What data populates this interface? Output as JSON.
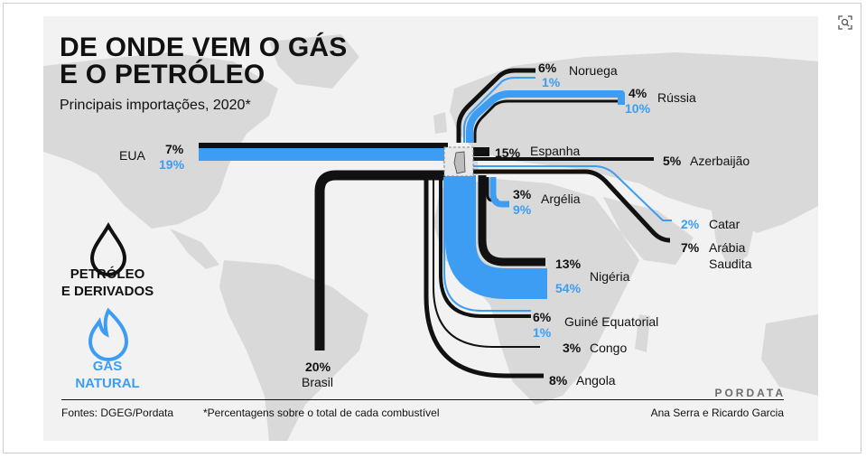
{
  "title_line1": "DE ONDE VEM O GÁS",
  "title_line2": "E O PETRÓLEO",
  "subtitle": "Principais importações, 2020*",
  "legend": {
    "oil": {
      "line1": "PETRÓLEO",
      "line2": "E DERIVADOS",
      "icon": "oil-drop-icon",
      "color": "#111111"
    },
    "gas": {
      "line1": "GÁS",
      "line2": "NATURAL",
      "icon": "flame-icon",
      "color": "#3d9df2"
    }
  },
  "colors": {
    "oil": "#111111",
    "gas": "#3d9df2",
    "map_land": "#d9d9d9",
    "background": "#f2f2f2"
  },
  "flows": [
    {
      "country": "EUA",
      "oil": "7%",
      "gas": "19%"
    },
    {
      "country": "Noruega",
      "oil": "6%",
      "gas": "1%"
    },
    {
      "country": "Rússia",
      "oil": "4%",
      "gas": "10%"
    },
    {
      "country": "Espanha",
      "oil": "15%",
      "gas": ""
    },
    {
      "country": "Azerbaijão",
      "oil": "5%",
      "gas": ""
    },
    {
      "country": "Argélia",
      "oil": "3%",
      "gas": "9%"
    },
    {
      "country": "Catar",
      "oil": "",
      "gas": "2%"
    },
    {
      "country": "Arábia Saudita",
      "oil": "7%",
      "gas": ""
    },
    {
      "country": "Nigéria",
      "oil": "13%",
      "gas": "54%"
    },
    {
      "country": "Guiné Equatorial",
      "oil": "6%",
      "gas": "1%"
    },
    {
      "country": "Congo",
      "oil": "3%",
      "gas": ""
    },
    {
      "country": "Angola",
      "oil": "8%",
      "gas": ""
    },
    {
      "country": "Brasil",
      "oil": "20%",
      "gas": ""
    }
  ],
  "labels": {
    "eua": {
      "name": "EUA",
      "oil": "7%",
      "gas": "19%"
    },
    "noruega": {
      "name": "Noruega",
      "oil": "6%",
      "gas": "1%"
    },
    "russia": {
      "name": "Rússia",
      "oil": "4%",
      "gas": "10%"
    },
    "espanha": {
      "name": "Espanha",
      "oil": "15%"
    },
    "azerbaijao": {
      "name": "Azerbaijão",
      "oil": "5%"
    },
    "argelia": {
      "name": "Argélia",
      "oil": "3%",
      "gas": "9%"
    },
    "catar": {
      "name": "Catar",
      "gas": "2%"
    },
    "arabia": {
      "name1": "Arábia",
      "name2": "Saudita",
      "oil": "7%"
    },
    "nigeria": {
      "name": "Nigéria",
      "oil": "13%",
      "gas": "54%"
    },
    "guine": {
      "name": "Guiné Equatorial",
      "oil": "6%",
      "gas": "1%"
    },
    "congo": {
      "name": "Congo",
      "oil": "3%"
    },
    "angola": {
      "name": "Angola",
      "oil": "8%"
    },
    "brasil": {
      "name": "Brasil",
      "oil": "20%"
    }
  },
  "footer": {
    "sources": "Fontes: DGEG/Pordata",
    "note": "*Percentagens sobre o total de cada combustível",
    "authors": "Ana Serra e Ricardo Garcia",
    "brand": "PORDATA"
  },
  "icons": {
    "corner": "zoom-icon"
  }
}
